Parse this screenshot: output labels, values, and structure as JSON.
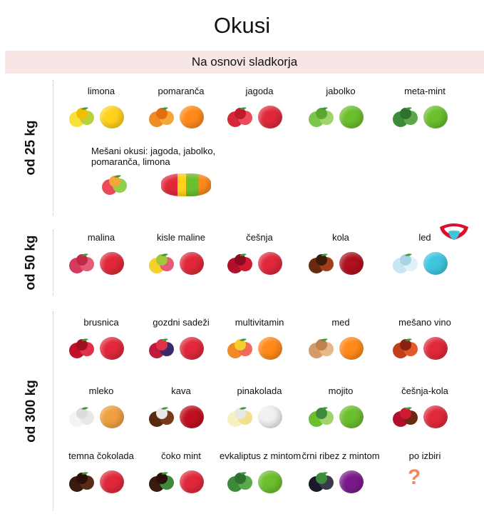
{
  "title": "Okusi",
  "subtitle": "Na osnovi sladkorja",
  "sections": [
    {
      "label": "od 25 kg",
      "items": [
        {
          "name": "limona",
          "candy": "#ffd21a",
          "fruit": [
            "#f8e03a",
            "#b8d23c",
            "#f0c000"
          ]
        },
        {
          "name": "pomaranča",
          "candy": "#ff8a1a",
          "fruit": [
            "#f08a22",
            "#f4a63a",
            "#e56d10"
          ]
        },
        {
          "name": "jagoda",
          "candy": "#e1283a",
          "fruit": [
            "#d6283a",
            "#e84c5a",
            "#c01a2a"
          ]
        },
        {
          "name": "jabolko",
          "candy": "#6cbf2e",
          "fruit": [
            "#7ac74a",
            "#9fd46a",
            "#5aa830"
          ]
        },
        {
          "name": "meta-mint",
          "candy": "#6cbf2e",
          "fruit": [
            "#3d8b3a",
            "#5aa84a",
            "#2e7030"
          ]
        },
        {
          "name": "Mešani okusi: jagoda, jabolko, pomaranča, limona",
          "candy": "#e1283a",
          "fruit": [
            "#e84c5a",
            "#8fd04a",
            "#f5a63a"
          ]
        }
      ]
    },
    {
      "label": "od 50 kg",
      "items": [
        {
          "name": "malina",
          "candy": "#e1283a",
          "fruit": [
            "#d63a5a",
            "#e45a78",
            "#c02a48"
          ]
        },
        {
          "name": "kisle maline",
          "candy": "#e1283a",
          "fruit": [
            "#f5d02a",
            "#e45a78",
            "#a0c83a"
          ]
        },
        {
          "name": "češnja",
          "candy": "#e1283a",
          "fruit": [
            "#b0102a",
            "#d01a30",
            "#8a0a20"
          ]
        },
        {
          "name": "kola",
          "candy": "#b0101f",
          "fruit": [
            "#6a2a10",
            "#a0401a",
            "#3a1a08"
          ]
        },
        {
          "name": "led",
          "candy": "#3ec6df",
          "fruit": [
            "#c8e6f0",
            "#e0f2f8",
            "#a8d4e6"
          ]
        }
      ]
    },
    {
      "label": "od 300 kg",
      "items": [
        {
          "name": "brusnica",
          "candy": "#e1283a",
          "fruit": [
            "#c0102a",
            "#e0304a",
            "#a01020"
          ]
        },
        {
          "name": "gozdni sadeži",
          "candy": "#e1283a",
          "fruit": [
            "#c01a3a",
            "#3a2a6a",
            "#e0304a"
          ]
        },
        {
          "name": "multivitamin",
          "candy": "#ff8a1a",
          "fruit": [
            "#f08a22",
            "#f46a5a",
            "#f5d02a"
          ]
        },
        {
          "name": "med",
          "candy": "#ff8a1a",
          "fruit": [
            "#d49a6a",
            "#e8b88a",
            "#c08050"
          ]
        },
        {
          "name": "mešano vino",
          "candy": "#e1283a",
          "fruit": [
            "#c0401a",
            "#e05a2a",
            "#8a2010"
          ]
        },
        {
          "name": "mleko",
          "candy": "#f0a040",
          "fruit": [
            "#f4f4f4",
            "#e8e8e8",
            "#dcdcdc"
          ]
        },
        {
          "name": "kava",
          "candy": "#c0101f",
          "fruit": [
            "#5a2a10",
            "#7a3a1a",
            "#e8e8e8"
          ]
        },
        {
          "name": "pinakolada",
          "candy": "#f0f0f0",
          "fruit": [
            "#f8f0c0",
            "#f0e090",
            "#e8e8e8"
          ]
        },
        {
          "name": "mojito",
          "candy": "#6cbf2e",
          "fruit": [
            "#6cbf2e",
            "#a0d46a",
            "#3d8b3a"
          ]
        },
        {
          "name": "češnja-kola",
          "candy": "#e1283a",
          "fruit": [
            "#b0102a",
            "#6a2a10",
            "#d01a30"
          ]
        },
        {
          "name": "temna čokolada",
          "candy": "#e1283a",
          "fruit": [
            "#3a1a10",
            "#5a2a18",
            "#2a1008"
          ]
        },
        {
          "name": "čoko mint",
          "candy": "#e1283a",
          "fruit": [
            "#3a1a10",
            "#3d8b3a",
            "#2a1008"
          ]
        },
        {
          "name": "evkaliptus z mintom",
          "candy": "#6cbf2e",
          "fruit": [
            "#3d8b3a",
            "#5aa84a",
            "#2e7030"
          ]
        },
        {
          "name": "črni ribez z mintom",
          "candy": "#7a1a8a",
          "fruit": [
            "#1a1a2a",
            "#3a3a4a",
            "#3d8b3a"
          ]
        },
        {
          "name": "po izbiri",
          "candy": "",
          "fruit": [
            "#f08a5d"
          ],
          "symbol": "?"
        }
      ]
    }
  ]
}
